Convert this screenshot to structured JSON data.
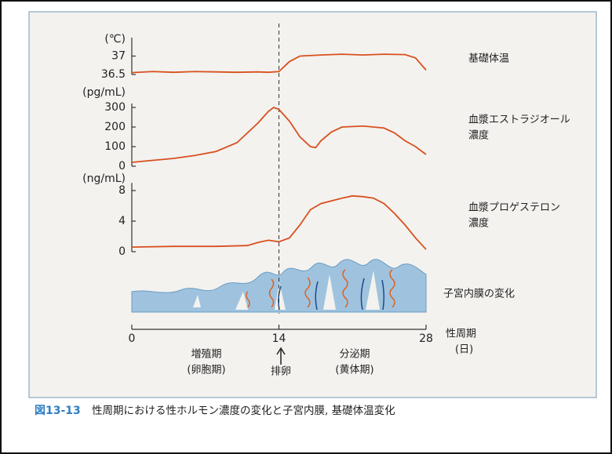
{
  "chart_data": [
    {
      "type": "line",
      "ylabel": "(℃)",
      "label": [
        "基礎体温"
      ],
      "color": "#d9501e",
      "x": [
        0,
        2,
        4,
        6,
        8,
        10,
        12,
        13,
        14,
        15,
        16,
        18,
        20,
        22,
        24,
        26,
        27,
        28
      ],
      "values": [
        36.55,
        36.58,
        36.56,
        36.58,
        36.57,
        36.56,
        36.57,
        36.56,
        36.58,
        36.85,
        37.0,
        37.03,
        37.05,
        37.03,
        37.05,
        37.04,
        36.95,
        36.62
      ],
      "ylim": [
        36.5,
        37.5
      ],
      "yticks": [
        36.5,
        37
      ]
    },
    {
      "type": "line",
      "ylabel": "(pg/mL)",
      "label": [
        "血漿エストラジオール",
        "濃度"
      ],
      "color": "#d9501e",
      "x": [
        0,
        2,
        4,
        6,
        8,
        10,
        12,
        13,
        13.5,
        14,
        15,
        16,
        17,
        17.5,
        18,
        19,
        20,
        22,
        24,
        25,
        26,
        27,
        28
      ],
      "values": [
        20,
        30,
        40,
        55,
        75,
        120,
        220,
        280,
        300,
        290,
        230,
        150,
        100,
        95,
        130,
        175,
        200,
        205,
        195,
        170,
        130,
        100,
        60
      ],
      "ylim": [
        0,
        320
      ],
      "yticks": [
        0,
        100,
        200,
        300
      ]
    },
    {
      "type": "line",
      "ylabel": "(ng/mL)",
      "label": [
        "血漿プロゲステロン",
        "濃度"
      ],
      "color": "#d9501e",
      "x": [
        0,
        4,
        8,
        11,
        12,
        13,
        14,
        15,
        16,
        17,
        18,
        20,
        21,
        22,
        23,
        24,
        25,
        26,
        27,
        28
      ],
      "values": [
        0.6,
        0.7,
        0.7,
        0.8,
        1.2,
        1.5,
        1.3,
        1.8,
        3.5,
        5.5,
        6.3,
        7,
        7.3,
        7.2,
        7,
        6.3,
        5,
        3.5,
        1.8,
        0.3
      ],
      "ylim": [
        0,
        9
      ],
      "yticks": [
        0,
        4,
        8
      ]
    }
  ],
  "endometrium_label": "子宮内膜の変化",
  "day_axis": {
    "label": "性周期",
    "unit": "(日)",
    "xlim": [
      0,
      28
    ],
    "xticks": [
      0,
      14,
      28
    ]
  },
  "phases": [
    {
      "name": "増殖期",
      "sub": "(卵胞期)"
    },
    {
      "name": "分泌期",
      "sub": "(黄体期)"
    }
  ],
  "ovulation": "排卵",
  "caption": {
    "number": "図13-13",
    "text": "性周期における性ホルモン濃度の変化と子宮内膜, 基礎体温変化"
  }
}
